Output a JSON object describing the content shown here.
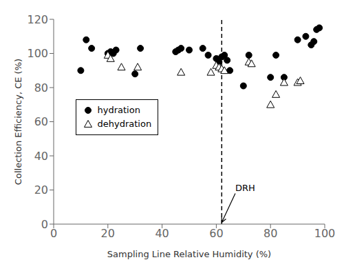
{
  "chart_data": {
    "type": "scatter",
    "x_label": "Sampling Line Relative Humidity (%)",
    "y_label": "Collection Efficiency, CE (%)",
    "xlim": [
      0,
      100
    ],
    "ylim": [
      0,
      120
    ],
    "xticks": [
      0,
      20,
      40,
      60,
      80,
      100
    ],
    "yticks": [
      0,
      20,
      40,
      60,
      80,
      100,
      120
    ],
    "grid": false,
    "legend": "left",
    "series": [
      {
        "name": "hydration",
        "color": "#000000",
        "marker": "circle",
        "x": [
          10,
          12,
          14,
          20,
          21,
          22,
          23,
          30,
          32,
          45,
          46,
          47,
          50,
          55,
          57,
          60,
          61,
          62,
          63,
          64,
          65,
          70,
          72,
          80,
          82,
          85,
          90,
          93,
          95,
          96,
          97,
          98
        ],
        "values": [
          90,
          108,
          103,
          100,
          101,
          100,
          102,
          88,
          103,
          101,
          102,
          103,
          102,
          103,
          99,
          97,
          95,
          98,
          99,
          96,
          90,
          81,
          99,
          86,
          99,
          86,
          108,
          110,
          105,
          107,
          114,
          115
        ]
      },
      {
        "name": "dehydration",
        "color": "#ffffff",
        "marker": "triangle",
        "x": [
          20,
          21,
          25,
          31,
          47,
          58,
          60,
          61,
          62,
          63,
          72,
          73,
          80,
          82,
          85,
          90,
          91
        ],
        "values": [
          99,
          97,
          92,
          92,
          89,
          89,
          93,
          92,
          91,
          90,
          95,
          94,
          70,
          76,
          83,
          83,
          84
        ]
      }
    ],
    "reference_lines": [
      {
        "x": 62,
        "line_style": "dashed"
      }
    ],
    "annotations": [
      {
        "text": "DRH",
        "x": 67,
        "y": 18,
        "arrow_x": 62,
        "arrow_y": 1
      }
    ]
  }
}
